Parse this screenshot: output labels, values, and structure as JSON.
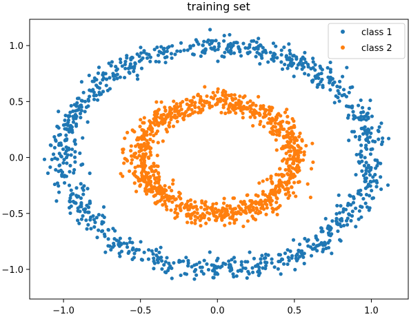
{
  "chart_data": {
    "type": "scatter",
    "title": "training set",
    "xlabel": "",
    "ylabel": "",
    "xlim": [
      -1.22,
      1.24
    ],
    "ylim": [
      -1.265,
      1.235
    ],
    "xticks": [
      {
        "value": -1.0,
        "label": "−1.0"
      },
      {
        "value": -0.5,
        "label": "−0.5"
      },
      {
        "value": 0.0,
        "label": "0.0"
      },
      {
        "value": 0.5,
        "label": "0.5"
      },
      {
        "value": 1.0,
        "label": "1.0"
      }
    ],
    "yticks": [
      {
        "value": 1.0,
        "label": "1.0"
      },
      {
        "value": 0.5,
        "label": "0.5"
      },
      {
        "value": 0.0,
        "label": "0.0"
      },
      {
        "value": -0.5,
        "label": "−0.5"
      },
      {
        "value": -1.0,
        "label": "−1.0"
      }
    ],
    "grid": false,
    "legend": "top-right",
    "series": [
      {
        "name": "class 1",
        "color": "#1f77b4",
        "shape": "ring",
        "center": [
          0.0,
          0.0
        ],
        "radius": 1.0,
        "noise": 0.05,
        "count": 1000
      },
      {
        "name": "class 2",
        "color": "#ff7f0e",
        "shape": "ring",
        "center": [
          0.0,
          0.0
        ],
        "radius": 0.5,
        "noise": 0.05,
        "count": 1000
      }
    ]
  }
}
